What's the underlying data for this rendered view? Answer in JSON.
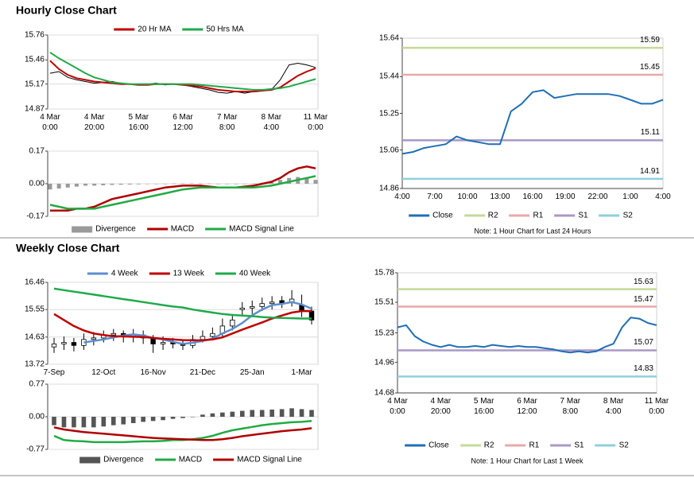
{
  "chart_data": [
    {
      "type": "line",
      "title": "Hourly Close Chart",
      "legend": "top",
      "grid": true,
      "categories": [
        "4 Mar\n0:00",
        null,
        null,
        null,
        null,
        "4 Mar\n20:00",
        null,
        null,
        null,
        null,
        "5 Mar\n16:00",
        null,
        null,
        null,
        null,
        "6 Mar\n12:00",
        null,
        null,
        null,
        null,
        "7 Mar\n8:00",
        null,
        null,
        null,
        null,
        "8 Mar\n4:00",
        null,
        null,
        null,
        null,
        "11 Mar\n0:00"
      ],
      "ylim": [
        14.87,
        15.76
      ],
      "yticks": [
        14.87,
        15.17,
        15.46,
        15.76
      ],
      "series": [
        {
          "color": "#000000",
          "values": [
            15.3,
            15.32,
            15.25,
            15.22,
            15.2,
            15.18,
            15.19,
            15.2,
            15.18,
            15.17,
            15.16,
            15.17,
            15.18,
            15.16,
            15.17,
            15.16,
            15.14,
            15.12,
            15.1,
            15.07,
            15.06,
            15.08,
            15.06,
            15.08,
            15.1,
            15.1,
            15.22,
            15.4,
            15.42,
            15.4,
            15.37
          ]
        },
        {
          "name": "20 Hr MA",
          "color": "#c00000",
          "values": [
            15.45,
            15.35,
            15.28,
            15.24,
            15.22,
            15.2,
            15.19,
            15.18,
            15.17,
            15.17,
            15.16,
            15.16,
            15.17,
            15.17,
            15.17,
            15.16,
            15.15,
            15.14,
            15.12,
            15.1,
            15.09,
            15.08,
            15.08,
            15.08,
            15.09,
            15.1,
            15.13,
            15.2,
            15.27,
            15.32,
            15.36
          ]
        },
        {
          "name": "50 Hrs MA",
          "color": "#1faa4b",
          "values": [
            15.55,
            15.48,
            15.42,
            15.36,
            15.3,
            15.25,
            15.22,
            15.19,
            15.18,
            15.17,
            15.17,
            15.17,
            15.17,
            15.17,
            15.17,
            15.17,
            15.17,
            15.16,
            15.15,
            15.14,
            15.13,
            15.12,
            15.11,
            15.1,
            15.1,
            15.11,
            15.12,
            15.14,
            15.17,
            15.2,
            15.23
          ]
        }
      ]
    },
    {
      "type": "combo",
      "legend": "bottom",
      "grid": true,
      "ylim": [
        -0.17,
        0.17
      ],
      "yticks": [
        -0.17,
        {
          "value": 0,
          "label": "0.00"
        },
        0.17
      ],
      "bars": {
        "name": "Divergence",
        "color": "#9a9a9a",
        "values": [
          -0.03,
          -0.025,
          -0.02,
          -0.015,
          -0.01,
          -0.01,
          -0.008,
          -0.006,
          -0.005,
          -0.004,
          -0.003,
          -0.002,
          -0.001,
          0,
          0.001,
          0.002,
          0.002,
          0.002,
          0.001,
          0,
          -0.001,
          -0.001,
          0,
          0.002,
          0.005,
          0.01,
          0.02,
          0.03,
          0.035,
          0.03,
          0.02
        ]
      },
      "series": [
        {
          "name": "MACD",
          "color": "#b00000",
          "values": [
            -0.14,
            -0.14,
            -0.14,
            -0.13,
            -0.13,
            -0.12,
            -0.1,
            -0.08,
            -0.07,
            -0.06,
            -0.05,
            -0.04,
            -0.03,
            -0.02,
            -0.015,
            -0.01,
            -0.01,
            -0.01,
            -0.015,
            -0.02,
            -0.02,
            -0.02,
            -0.015,
            -0.01,
            0.0,
            0.01,
            0.03,
            0.06,
            0.08,
            0.09,
            0.08
          ]
        },
        {
          "name": "MACD Signal Line",
          "color": "#22aa44",
          "values": [
            -0.11,
            -0.12,
            -0.13,
            -0.13,
            -0.13,
            -0.13,
            -0.12,
            -0.11,
            -0.1,
            -0.09,
            -0.08,
            -0.07,
            -0.06,
            -0.05,
            -0.04,
            -0.03,
            -0.025,
            -0.02,
            -0.02,
            -0.02,
            -0.02,
            -0.02,
            -0.02,
            -0.02,
            -0.015,
            -0.01,
            0.0,
            0.01,
            0.02,
            0.03,
            0.04
          ]
        }
      ]
    },
    {
      "type": "line",
      "legend": "bottom",
      "grid": false,
      "note": "Note: 1 Hour Chart for Last 24 Hours",
      "categories": [
        "4:00",
        null,
        null,
        "7:00",
        null,
        null,
        "10:00",
        null,
        null,
        "13:00",
        null,
        null,
        "16:00",
        null,
        null,
        "19:00",
        null,
        null,
        "22:00",
        null,
        null,
        "1:00",
        null,
        null,
        "4:00"
      ],
      "ylim": [
        14.86,
        15.64
      ],
      "yticks": [
        14.86,
        15.06,
        15.25,
        15.44,
        15.64
      ],
      "series": [
        {
          "name": "Close",
          "color": "#1f6fb5",
          "values": [
            15.04,
            15.05,
            15.07,
            15.08,
            15.09,
            15.13,
            15.11,
            15.1,
            15.09,
            15.09,
            15.26,
            15.3,
            15.36,
            15.37,
            15.33,
            15.34,
            15.35,
            15.35,
            15.35,
            15.35,
            15.34,
            15.32,
            15.3,
            15.3,
            15.32
          ]
        }
      ],
      "reference_lines": [
        {
          "name": "R2",
          "color": "#c6d99a",
          "value": 15.59
        },
        {
          "name": "R1",
          "color": "#e8a9a9",
          "value": 15.45
        },
        {
          "name": "S1",
          "color": "#a898c6",
          "value": 15.11
        },
        {
          "name": "S2",
          "color": "#8fcfdc",
          "value": 14.91
        }
      ]
    },
    {
      "type": "candlestick",
      "title": "Weekly Close Chart",
      "legend": "top",
      "grid": true,
      "categories": [
        "7-Sep",
        null,
        null,
        null,
        null,
        "12-Oct",
        null,
        null,
        null,
        null,
        "16-Nov",
        null,
        null,
        null,
        null,
        "21-Dec",
        null,
        null,
        null,
        null,
        "25-Jan",
        null,
        null,
        null,
        null,
        "1-Mar",
        null
      ],
      "ylim": [
        13.72,
        16.46
      ],
      "yticks": [
        13.72,
        14.63,
        15.55,
        16.46
      ],
      "open": [
        14.3,
        14.4,
        14.45,
        14.35,
        14.55,
        14.6,
        14.7,
        14.75,
        14.65,
        14.7,
        14.6,
        14.4,
        14.45,
        14.4,
        14.35,
        14.55,
        14.65,
        14.75,
        15.0,
        15.55,
        15.6,
        15.65,
        15.75,
        15.85,
        15.8,
        15.7,
        15.5
      ],
      "high": [
        14.6,
        14.65,
        14.6,
        14.75,
        14.8,
        14.85,
        14.9,
        14.85,
        14.9,
        14.85,
        14.7,
        14.65,
        14.6,
        14.55,
        14.7,
        14.85,
        14.95,
        15.25,
        15.4,
        15.8,
        15.85,
        15.95,
        16.0,
        16.0,
        16.2,
        16.05,
        15.65
      ],
      "low": [
        14.1,
        14.2,
        14.15,
        14.2,
        14.35,
        14.45,
        14.5,
        14.45,
        14.45,
        14.4,
        14.1,
        14.2,
        14.25,
        14.2,
        14.25,
        14.45,
        14.55,
        14.65,
        14.85,
        15.35,
        15.4,
        15.5,
        15.55,
        15.6,
        15.65,
        15.3,
        15.05
      ],
      "close": [
        14.4,
        14.45,
        14.35,
        14.55,
        14.6,
        14.7,
        14.75,
        14.65,
        14.7,
        14.6,
        14.4,
        14.45,
        14.4,
        14.35,
        14.55,
        14.65,
        14.75,
        15.0,
        15.2,
        15.6,
        15.65,
        15.75,
        15.8,
        15.75,
        15.9,
        15.5,
        15.2
      ],
      "series": [
        {
          "name": "4 Week",
          "color": "#5b8fd0",
          "values": [
            null,
            null,
            null,
            14.45,
            14.5,
            14.55,
            14.62,
            14.68,
            14.72,
            14.68,
            14.6,
            14.55,
            14.47,
            14.4,
            14.44,
            14.5,
            14.58,
            14.75,
            14.9,
            15.1,
            15.36,
            15.55,
            15.7,
            15.74,
            15.8,
            15.72,
            15.58
          ]
        },
        {
          "name": "13 Week",
          "color": "#c00000",
          "values": [
            15.4,
            15.2,
            15.0,
            14.85,
            14.75,
            14.7,
            14.66,
            14.65,
            14.64,
            14.63,
            14.6,
            14.57,
            14.55,
            14.53,
            14.52,
            14.52,
            14.55,
            14.62,
            14.75,
            14.88,
            15.0,
            15.12,
            15.25,
            15.35,
            15.45,
            15.5,
            15.5
          ]
        },
        {
          "name": "40 Week",
          "color": "#1faa4b",
          "values": [
            16.25,
            16.2,
            16.15,
            16.1,
            16.05,
            16.0,
            15.95,
            15.9,
            15.85,
            15.8,
            15.75,
            15.7,
            15.65,
            15.62,
            15.55,
            15.5,
            15.45,
            15.4,
            15.37,
            15.35,
            15.33,
            15.3,
            15.28,
            15.27,
            15.26,
            15.25,
            15.25
          ]
        }
      ]
    },
    {
      "type": "combo",
      "legend": "bottom",
      "grid": true,
      "ylim": [
        -0.77,
        0.77
      ],
      "yticks": [
        -0.77,
        {
          "value": 0,
          "label": "0.00"
        },
        0.77
      ],
      "bars": {
        "name": "Divergence",
        "color": "#555555",
        "values": [
          -0.2,
          -0.25,
          -0.25,
          -0.25,
          -0.25,
          -0.23,
          -0.2,
          -0.18,
          -0.15,
          -0.12,
          -0.1,
          -0.08,
          -0.05,
          -0.03,
          0.0,
          0.05,
          0.08,
          0.1,
          0.12,
          0.14,
          0.16,
          0.16,
          0.17,
          0.18,
          0.2,
          0.18,
          0.16
        ]
      },
      "series": [
        {
          "name": "MACD",
          "color": "#22aa44",
          "values": [
            -0.45,
            -0.55,
            -0.57,
            -0.58,
            -0.6,
            -0.6,
            -0.6,
            -0.6,
            -0.59,
            -0.58,
            -0.58,
            -0.57,
            -0.55,
            -0.55,
            -0.53,
            -0.5,
            -0.45,
            -0.38,
            -0.32,
            -0.28,
            -0.24,
            -0.2,
            -0.17,
            -0.15,
            -0.13,
            -0.12,
            -0.1
          ]
        },
        {
          "name": "MACD Signal Line",
          "color": "#b00000",
          "values": [
            -0.25,
            -0.3,
            -0.33,
            -0.36,
            -0.38,
            -0.4,
            -0.42,
            -0.44,
            -0.46,
            -0.48,
            -0.5,
            -0.51,
            -0.52,
            -0.53,
            -0.54,
            -0.55,
            -0.55,
            -0.53,
            -0.5,
            -0.46,
            -0.43,
            -0.4,
            -0.37,
            -0.34,
            -0.32,
            -0.3,
            -0.27
          ]
        }
      ]
    },
    {
      "type": "line",
      "legend": "bottom",
      "grid": false,
      "note": "Note: 1 Hour Chart for Last 1 Week",
      "categories": [
        "4 Mar\n0:00",
        null,
        null,
        null,
        null,
        "4 Mar\n20:00",
        null,
        null,
        null,
        null,
        "5 Mar\n16:00",
        null,
        null,
        null,
        null,
        "6 Mar\n12:00",
        null,
        null,
        null,
        null,
        "7 Mar\n8:00",
        null,
        null,
        null,
        null,
        "8 Mar\n4:00",
        null,
        null,
        null,
        null,
        "11 Mar\n0:00"
      ],
      "ylim": [
        14.68,
        15.78
      ],
      "yticks": [
        14.68,
        14.96,
        15.23,
        15.51,
        15.78
      ],
      "series": [
        {
          "name": "Close",
          "color": "#1f6fb5",
          "values": [
            15.28,
            15.3,
            15.2,
            15.15,
            15.12,
            15.1,
            15.12,
            15.1,
            15.1,
            15.11,
            15.1,
            15.12,
            15.11,
            15.1,
            15.11,
            15.1,
            15.1,
            15.09,
            15.08,
            15.06,
            15.05,
            15.06,
            15.05,
            15.06,
            15.1,
            15.13,
            15.28,
            15.37,
            15.36,
            15.32,
            15.3
          ]
        }
      ],
      "reference_lines": [
        {
          "name": "R2",
          "color": "#c6d99a",
          "value": 15.63
        },
        {
          "name": "R1",
          "color": "#e8a9a9",
          "value": 15.47
        },
        {
          "name": "S1",
          "color": "#a898c6",
          "value": 15.07
        },
        {
          "name": "S2",
          "color": "#8fcfdc",
          "value": 14.83
        }
      ]
    }
  ]
}
